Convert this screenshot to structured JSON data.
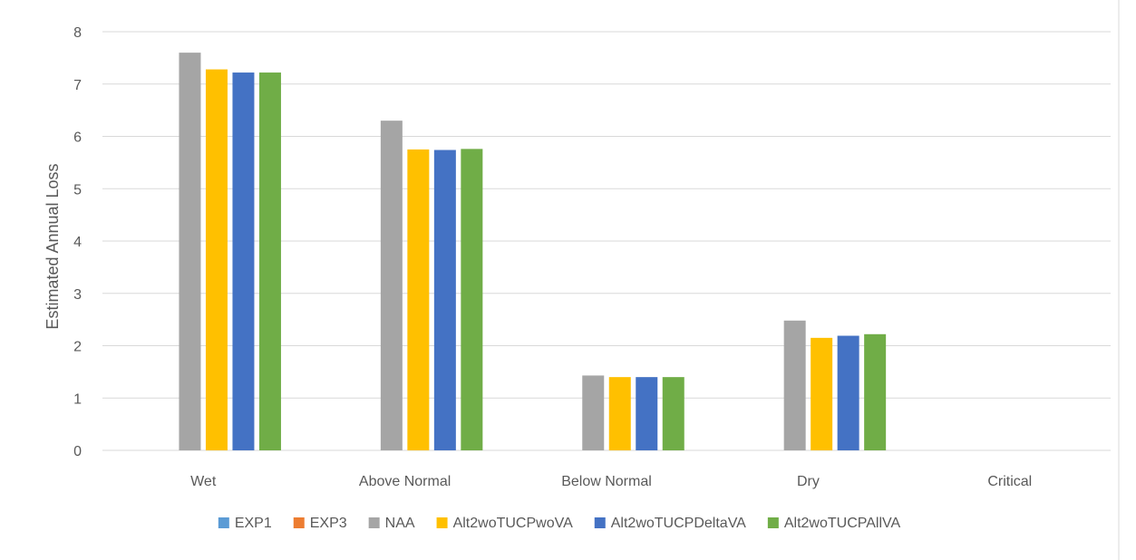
{
  "chart_data": {
    "type": "bar",
    "title": "",
    "xlabel": "",
    "ylabel": "Estimated Annual Loss",
    "ylim": [
      0,
      8
    ],
    "yticks": [
      0,
      1,
      2,
      3,
      4,
      5,
      6,
      7,
      8
    ],
    "grid": true,
    "legend_position": "bottom",
    "categories": [
      "Wet",
      "Above Normal",
      "Below Normal",
      "Dry",
      "Critical"
    ],
    "series": [
      {
        "name": "EXP1",
        "color": "#5B9BD5",
        "values": [
          0,
          0,
          0,
          0,
          0
        ]
      },
      {
        "name": "EXP3",
        "color": "#ED7D31",
        "values": [
          0,
          0,
          0,
          0,
          0
        ]
      },
      {
        "name": "NAA",
        "color": "#A5A5A5",
        "values": [
          7.6,
          6.3,
          1.43,
          2.48,
          0
        ]
      },
      {
        "name": "Alt2woTUCPwoVA",
        "color": "#FFC000",
        "values": [
          7.28,
          5.75,
          1.4,
          2.15,
          0
        ]
      },
      {
        "name": "Alt2woTUCPDeltaVA",
        "color": "#4472C4",
        "values": [
          7.22,
          5.74,
          1.4,
          2.19,
          0
        ]
      },
      {
        "name": "Alt2woTUCPAllVA",
        "color": "#70AD47",
        "values": [
          7.22,
          5.76,
          1.4,
          2.22,
          0
        ]
      }
    ]
  }
}
